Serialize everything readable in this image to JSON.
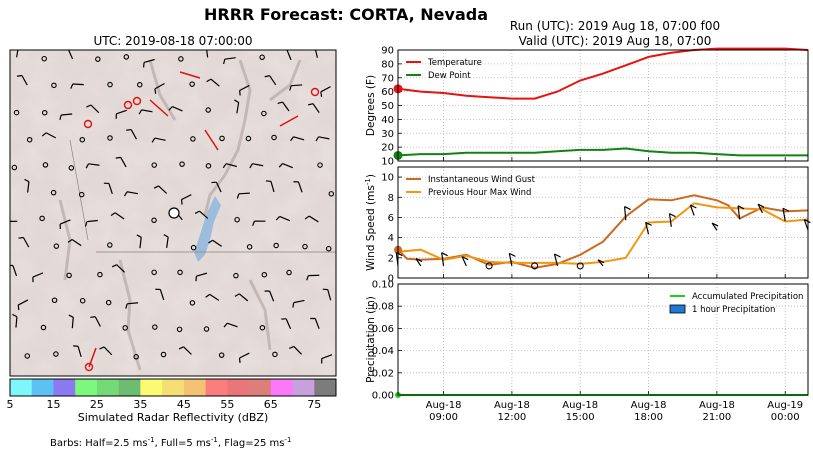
{
  "figure": {
    "title": "HRRR Forecast: CORTA, Nevada",
    "map_title": "UTC: 2019-08-18 07:00:00",
    "run_line": "Run (UTC): 2019 Aug 18, 07:00 f00",
    "valid_line": "Valid (UTC): 2019 Aug 18, 07:00",
    "colorbar_label": "Simulated Radar Reflectivity (dBZ)",
    "colorbar_ticks": [
      "5",
      "15",
      "25",
      "35",
      "45",
      "55",
      "65",
      "75"
    ],
    "colorbar_colors": [
      "#7ef7fc",
      "#5dc1f4",
      "#8a7af0",
      "#7cf87c",
      "#74d977",
      "#6cbc71",
      "#fbfb73",
      "#f5df73",
      "#f4c273",
      "#fb7e7f",
      "#e97678",
      "#de7e7a",
      "#fb78f9",
      "#c7a0dd",
      "#7c7c7c"
    ],
    "barbs_note": "Barbs: Half=2.5 ms",
    "barbs_note_sup": "-1",
    "barbs_note_rest": ", Full=5 ms",
    "barbs_note_sup2": "-1",
    "barbs_note_rest2": ", Flag=25 ms",
    "barbs_note_sup3": "-1"
  },
  "chart_data": [
    {
      "type": "line",
      "ylabel": "Degrees (F)",
      "ylim": [
        10,
        90
      ],
      "yticks": [
        10,
        20,
        30,
        40,
        50,
        60,
        70,
        80,
        90
      ],
      "grid": true,
      "legend": "top-left",
      "colors": {
        "Temperature": "#e8130f",
        "Dew Point": "#128212"
      },
      "series": [
        {
          "name": "Temperature",
          "x": [
            7,
            8,
            9,
            10,
            11,
            12,
            13,
            14,
            15,
            16,
            17,
            18,
            19,
            20,
            21,
            22,
            23,
            24,
            25
          ],
          "values": [
            62,
            60,
            59,
            57,
            56,
            55,
            55,
            60,
            68,
            73,
            79,
            85,
            88,
            90,
            91,
            91,
            91,
            91,
            90
          ]
        },
        {
          "name": "Dew Point",
          "x": [
            7,
            8,
            9,
            10,
            11,
            12,
            13,
            14,
            15,
            16,
            17,
            18,
            19,
            20,
            21,
            22,
            23,
            24,
            25
          ],
          "values": [
            14,
            15,
            15,
            16,
            16,
            16,
            16,
            17,
            18,
            18,
            19,
            17,
            16,
            16,
            15,
            14,
            14,
            14,
            14
          ]
        }
      ]
    },
    {
      "type": "line",
      "ylabel": "Wind Speed (ms",
      "ylabel_sup": "-1",
      "ylabel_end": ")",
      "ylim": [
        0,
        11
      ],
      "yticks": [
        0,
        2,
        4,
        6,
        8,
        10
      ],
      "grid": true,
      "legend": "top-left",
      "colors": {
        "Instantaneous Wind Gust": "#cc6a1f",
        "Previous Hour Max Wind": "#f29611"
      },
      "series": [
        {
          "name": "Instantaneous Wind Gust",
          "x": [
            7,
            7.4,
            8,
            9,
            10,
            11,
            12,
            13,
            14,
            15,
            16,
            17,
            18,
            19,
            20,
            21,
            21.5,
            22,
            23,
            24,
            25
          ],
          "values": [
            2.8,
            1.9,
            1.8,
            1.9,
            2.3,
            1.3,
            1.6,
            1.0,
            1.4,
            2.3,
            3.6,
            6.1,
            7.8,
            7.7,
            8.2,
            7.7,
            7.2,
            5.9,
            7.0,
            6.6,
            6.7
          ]
        },
        {
          "name": "Previous Hour Max Wind",
          "x": [
            7,
            8,
            9,
            10,
            11,
            12,
            13,
            14,
            15,
            16,
            17,
            18,
            19,
            20,
            21,
            22,
            23,
            24,
            25
          ],
          "values": [
            2.6,
            2.8,
            1.8,
            2.2,
            1.6,
            1.5,
            1.5,
            1.5,
            1.4,
            1.6,
            2.0,
            5.5,
            5.6,
            7.4,
            7.0,
            6.9,
            6.8,
            5.6,
            5.8
          ]
        }
      ]
    },
    {
      "type": "line",
      "ylabel": "Precipitation (in)",
      "ylim": [
        0,
        0.1
      ],
      "yticks": [
        "0.00",
        "0.02",
        "0.04",
        "0.06",
        "0.08",
        "0.10"
      ],
      "xticks": [
        {
          "x": 9,
          "l1": "Aug-18",
          "l2": "09:00"
        },
        {
          "x": 12,
          "l1": "Aug-18",
          "l2": "12:00"
        },
        {
          "x": 15,
          "l1": "Aug-18",
          "l2": "15:00"
        },
        {
          "x": 18,
          "l1": "Aug-18",
          "l2": "18:00"
        },
        {
          "x": 21,
          "l1": "Aug-18",
          "l2": "21:00"
        },
        {
          "x": 24,
          "l1": "Aug-19",
          "l2": "00:00"
        }
      ],
      "grid": true,
      "legend": "top-right",
      "colors": {
        "Accumulated Precipitation": "#19d319",
        "1 hour Precipitation": "#1f78d6"
      },
      "series": [
        {
          "name": "Accumulated Precipitation",
          "x": [
            7,
            25
          ],
          "values": [
            0,
            0
          ]
        },
        {
          "name": "1 hour Precipitation",
          "x": [],
          "values": []
        }
      ]
    }
  ]
}
